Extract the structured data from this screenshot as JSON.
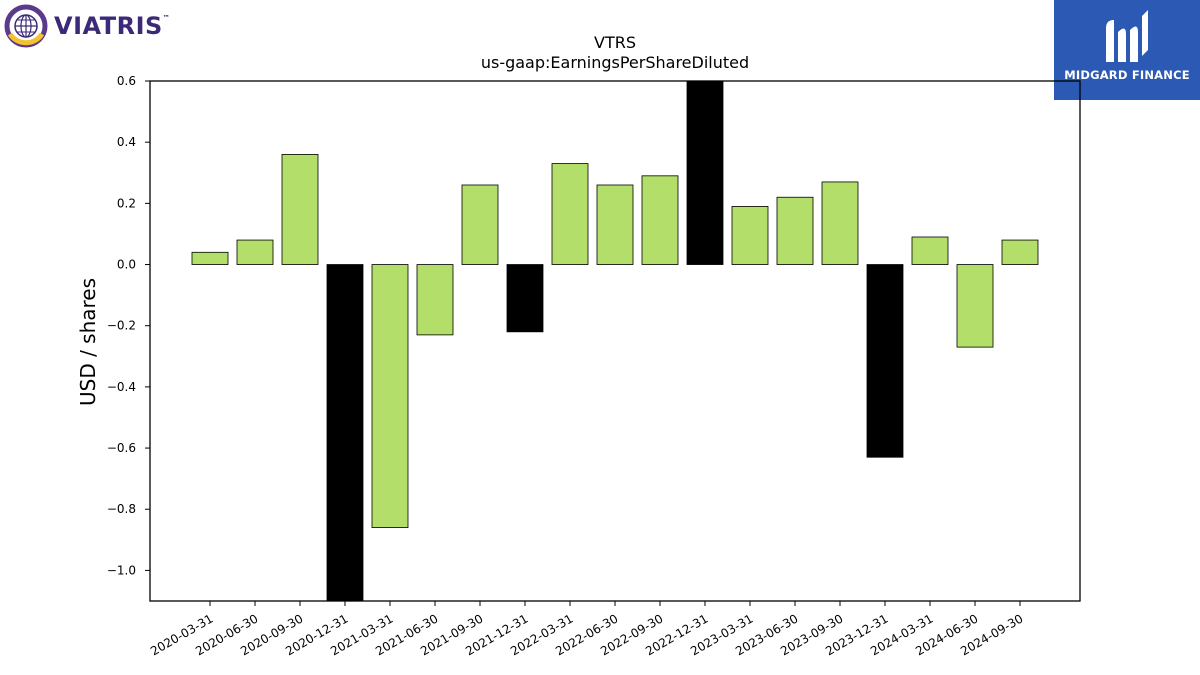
{
  "logos": {
    "left_brand": "VIATRIS",
    "left_tm": "™",
    "right_brand": "MIDGARD FINANCE"
  },
  "colors": {
    "positive_bar": "#b3de69",
    "highlight_bar": "#000000",
    "right_logo_bg": "#2b59b3",
    "left_logo_text": "#3c2a78"
  },
  "chart_data": {
    "type": "bar",
    "title": "VTRS",
    "subtitle": "us-gaap:EarningsPerShareDiluted",
    "xlabel": "",
    "ylabel": "USD / shares",
    "ylim": [
      -1.1,
      0.6
    ],
    "yticks": [
      0.6,
      0.4,
      0.2,
      0.0,
      -0.2,
      -0.4,
      -0.6,
      -0.8,
      -1.0
    ],
    "ytick_labels": [
      "0.6",
      "0.4",
      "0.2",
      "0.0",
      "−0.2",
      "−0.4",
      "−0.6",
      "−0.8",
      "−1.0"
    ],
    "categories": [
      "2020-03-31",
      "2020-06-30",
      "2020-09-30",
      "2020-12-31",
      "2021-03-31",
      "2021-06-30",
      "2021-09-30",
      "2021-12-31",
      "2022-03-31",
      "2022-06-30",
      "2022-09-30",
      "2022-12-31",
      "2023-03-31",
      "2023-06-30",
      "2023-09-30",
      "2023-12-31",
      "2024-03-31",
      "2024-06-30",
      "2024-09-30"
    ],
    "values": [
      0.04,
      0.08,
      0.36,
      -1.1,
      -0.86,
      -0.23,
      0.26,
      -0.22,
      0.33,
      0.26,
      0.29,
      0.6,
      0.19,
      0.22,
      0.27,
      -0.63,
      0.09,
      -0.27,
      0.08
    ],
    "highlighted": [
      false,
      false,
      false,
      true,
      false,
      false,
      false,
      true,
      false,
      false,
      false,
      true,
      false,
      false,
      false,
      true,
      false,
      false,
      false
    ],
    "grid": false,
    "legend": "none"
  }
}
